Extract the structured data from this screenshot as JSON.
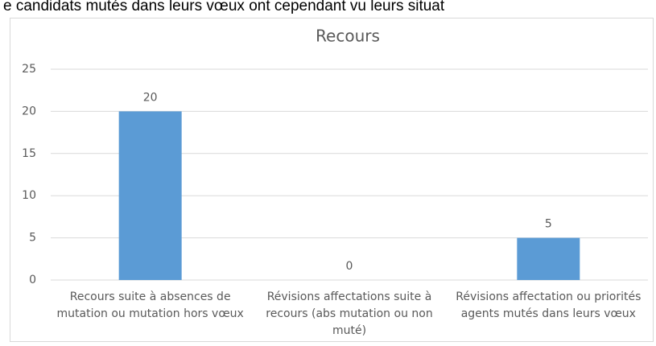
{
  "caption": "e candidats mutés dans leurs vœux ont cependant vu leurs situat",
  "chart_data": {
    "type": "bar",
    "title": "Recours",
    "categories": [
      "Recours suite à absences de mutation ou mutation hors vœux",
      "Révisions affectations suite à recours (abs mutation ou non muté)",
      "Révisions affectation ou priorités agents mutés dans leurs vœux"
    ],
    "values": [
      20,
      0,
      5
    ],
    "color": "#5b9bd5",
    "ylim": [
      0,
      25
    ],
    "yticks": [
      0,
      5,
      10,
      15,
      20,
      25
    ],
    "grid": true,
    "data_labels": true
  }
}
